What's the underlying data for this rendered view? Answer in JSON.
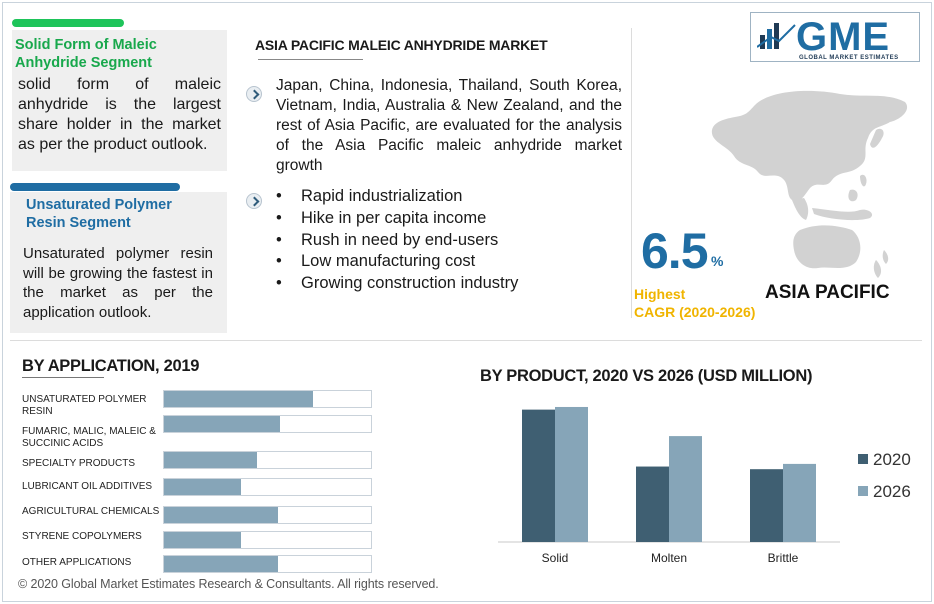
{
  "cards": [
    {
      "title": "Solid Form of Maleic Anhydride Segment",
      "text": "solid form of maleic anhydride is the largest share holder in the market as per the product outlook."
    },
    {
      "title": "Unsaturated Polymer Resin Segment",
      "text": "Unsaturated polymer resin will be growing the fastest in the market as per the application outlook."
    }
  ],
  "colors": {
    "green": "#1ec45a",
    "blue": "#1f6da3",
    "accent_yellow": "#f0b400",
    "bar_dark": "#3f5f72",
    "bar_light": "#86a5b8"
  },
  "market": {
    "title": "ASIA PACIFIC MALEIC ANHYDRIDE MARKET",
    "countries_text": "Japan, China, Indonesia, Thailand, South Korea, Vietnam, India, Australia & New Zealand, and the rest of Asia Pacific, are evaluated for the analysis of the Asia Pacific maleic anhydride market growth",
    "bullets": [
      "Rapid industrialization",
      "Hike in per capita income",
      "Rush in need by end-users",
      "Low manufacturing cost",
      "Growing construction industry"
    ]
  },
  "logo": {
    "text": "GME",
    "subtitle": "GLOBAL MARKET ESTIMATES"
  },
  "cagr": {
    "value": "6.5",
    "unit": "%",
    "label_line1": "Highest",
    "label_line2": "CAGR (2020-2026)",
    "region": "ASIA PACIFIC"
  },
  "chart_data": [
    {
      "type": "bar",
      "title": "BY APPLICATION, 2019",
      "orientation": "horizontal",
      "categories": [
        "UNSATURATED POLYMER RESIN",
        "FUMARIC, MALIC, MALEIC & SUCCINIC ACIDS",
        "SPECIALTY PRODUCTS",
        "LUBRICANT OIL ADDITIVES",
        "AGRICULTURAL CHEMICALS",
        "STYRENE COPOLYMERS",
        "OTHER APPLICATIONS"
      ],
      "values": [
        0.72,
        0.56,
        0.45,
        0.37,
        0.55,
        0.37,
        0.55
      ],
      "value_scale": "fraction of track",
      "grid": false
    },
    {
      "type": "bar",
      "title": "BY PRODUCT,  2020 VS 2026 (USD MILLION)",
      "categories": [
        "Solid",
        "Molten",
        "Brittle"
      ],
      "series": [
        {
          "name": "2020",
          "values": [
            100,
            57,
            55
          ],
          "color": "#3f5f72"
        },
        {
          "name": "2026",
          "values": [
            102,
            80,
            59
          ],
          "color": "#86a5b8"
        }
      ],
      "ylim": [
        0,
        105
      ],
      "grid": false,
      "legend": "right"
    }
  ],
  "footer": "© 2020 Global Market Estimates Research & Consultants. All rights reserved."
}
